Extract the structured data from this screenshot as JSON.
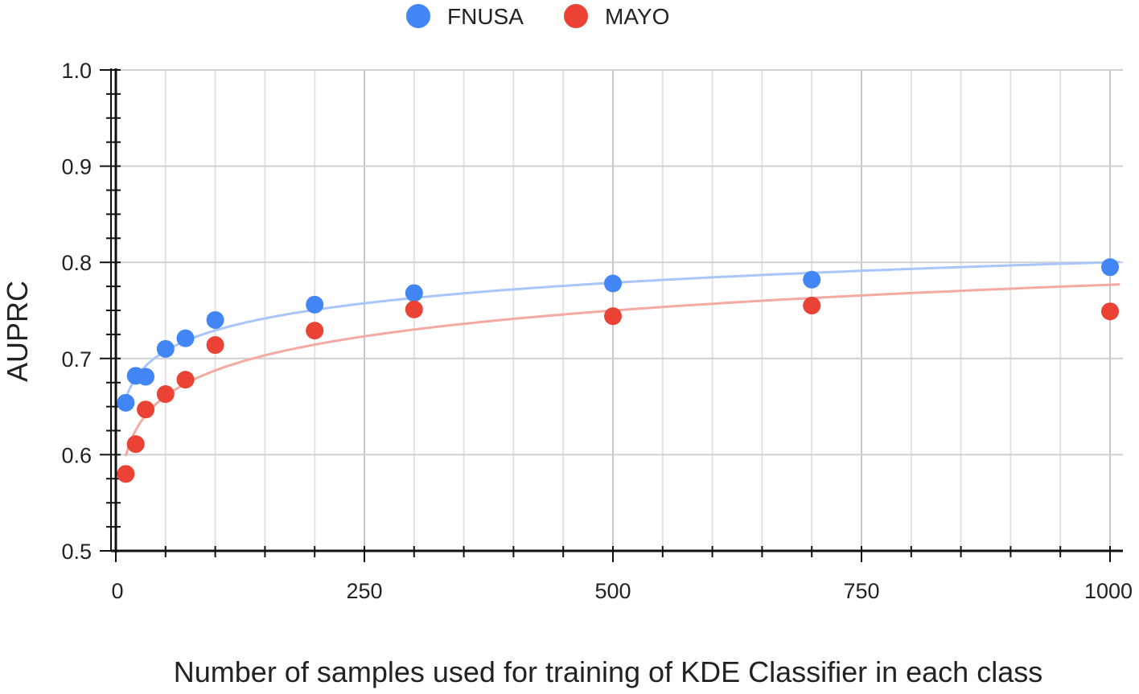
{
  "chart_data": {
    "type": "scatter",
    "xlabel": "Number of samples used for training of KDE Classifier in each class",
    "ylabel": "AUPRC",
    "xlim": [
      0,
      1000
    ],
    "ylim": [
      0.5,
      1.0
    ],
    "x_ticks": [
      "0",
      "250",
      "500",
      "750",
      "1000"
    ],
    "y_ticks": [
      "0.5",
      "0.6",
      "0.7",
      "0.8",
      "0.9",
      "1.0"
    ],
    "grid": true,
    "legend_position": "top-center",
    "trendline": "logarithmic",
    "series": [
      {
        "name": "FNUSA",
        "color": "#4285f4",
        "trend_color": "#a8c6fa",
        "points": [
          {
            "x": 10,
            "y": 0.654
          },
          {
            "x": 20,
            "y": 0.682
          },
          {
            "x": 30,
            "y": 0.681
          },
          {
            "x": 50,
            "y": 0.71
          },
          {
            "x": 70,
            "y": 0.721
          },
          {
            "x": 100,
            "y": 0.74
          },
          {
            "x": 200,
            "y": 0.756
          },
          {
            "x": 300,
            "y": 0.768
          },
          {
            "x": 500,
            "y": 0.778
          },
          {
            "x": 700,
            "y": 0.782
          },
          {
            "x": 1000,
            "y": 0.795
          }
        ]
      },
      {
        "name": "MAYO",
        "color": "#ea4335",
        "trend_color": "#f4a9a2",
        "points": [
          {
            "x": 10,
            "y": 0.58
          },
          {
            "x": 20,
            "y": 0.611
          },
          {
            "x": 30,
            "y": 0.647
          },
          {
            "x": 50,
            "y": 0.663
          },
          {
            "x": 70,
            "y": 0.678
          },
          {
            "x": 100,
            "y": 0.714
          },
          {
            "x": 200,
            "y": 0.729
          },
          {
            "x": 300,
            "y": 0.751
          },
          {
            "x": 500,
            "y": 0.744
          },
          {
            "x": 700,
            "y": 0.755
          },
          {
            "x": 1000,
            "y": 0.749
          }
        ]
      }
    ]
  }
}
